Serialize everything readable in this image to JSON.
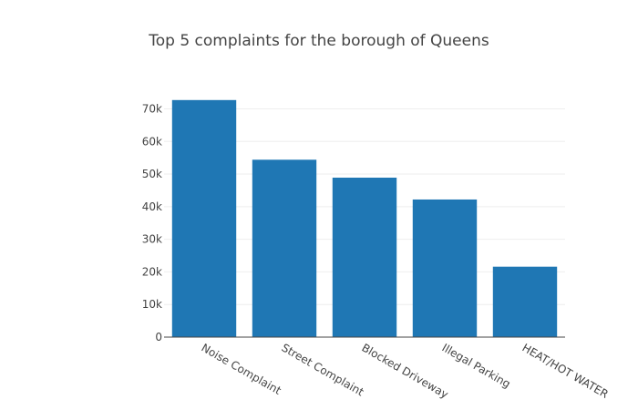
{
  "chart_data": {
    "type": "bar",
    "title": "Top 5 complaints for the borough of Queens",
    "xlabel": "",
    "ylabel": "",
    "categories": [
      "Noise Complaint",
      "Street Complaint",
      "Blocked Driveway",
      "Illegal Parking",
      "HEAT/HOT WATER"
    ],
    "values": [
      72700,
      54400,
      48900,
      42200,
      21600
    ],
    "ylim": [
      0,
      76000
    ],
    "yticks": [
      0,
      10000,
      20000,
      30000,
      40000,
      50000,
      60000,
      70000
    ],
    "ytick_labels": [
      "0",
      "10k",
      "20k",
      "30k",
      "40k",
      "50k",
      "60k",
      "70k"
    ],
    "grid": true,
    "bar_color": "#1f77b4",
    "gridline_color": "#eeeeee",
    "axis_color": "#444444"
  }
}
